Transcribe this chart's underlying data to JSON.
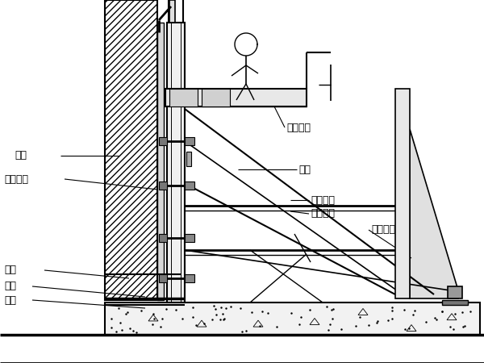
{
  "bg_color": "#ffffff",
  "line_color": "#000000",
  "labels": {
    "qiangti": "墙体",
    "fangshui": "防水保护",
    "daocheng": "导墙",
    "dipan": "底板",
    "dieceng": "垫层",
    "caozuo": "操作平台",
    "moban": "模板",
    "dancezhi": "单侧支架",
    "pujian": "埋件系统",
    "tiaojie": "调节丝杆"
  },
  "figsize": [
    6.0,
    4.5
  ],
  "dpi": 100
}
